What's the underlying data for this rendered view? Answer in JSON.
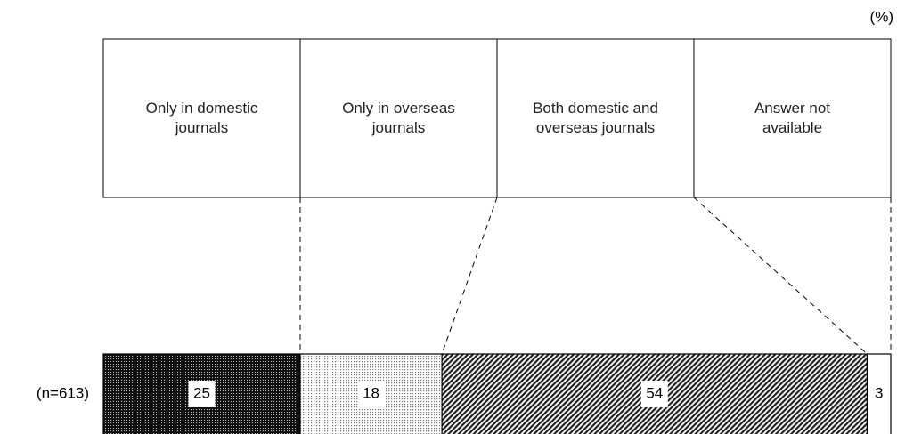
{
  "chart_data": {
    "type": "bar",
    "stacked": true,
    "orientation": "horizontal",
    "unit_label": "(%)",
    "categories": [
      "(n=613)"
    ],
    "series": [
      {
        "name": "Only in domestic\njournals",
        "color": "#222222",
        "pattern": "dense-dots",
        "values": [
          25
        ]
      },
      {
        "name": "Only in overseas\njournals",
        "color": "#bbbbbb",
        "pattern": "dots",
        "values": [
          18
        ]
      },
      {
        "name": "Both domestic and\noverseas journals",
        "color": "#333333",
        "pattern": "diagonal",
        "values": [
          54
        ]
      },
      {
        "name": "Answer not\navailable",
        "color": "#ffffff",
        "pattern": "none",
        "values": [
          3
        ]
      }
    ]
  }
}
